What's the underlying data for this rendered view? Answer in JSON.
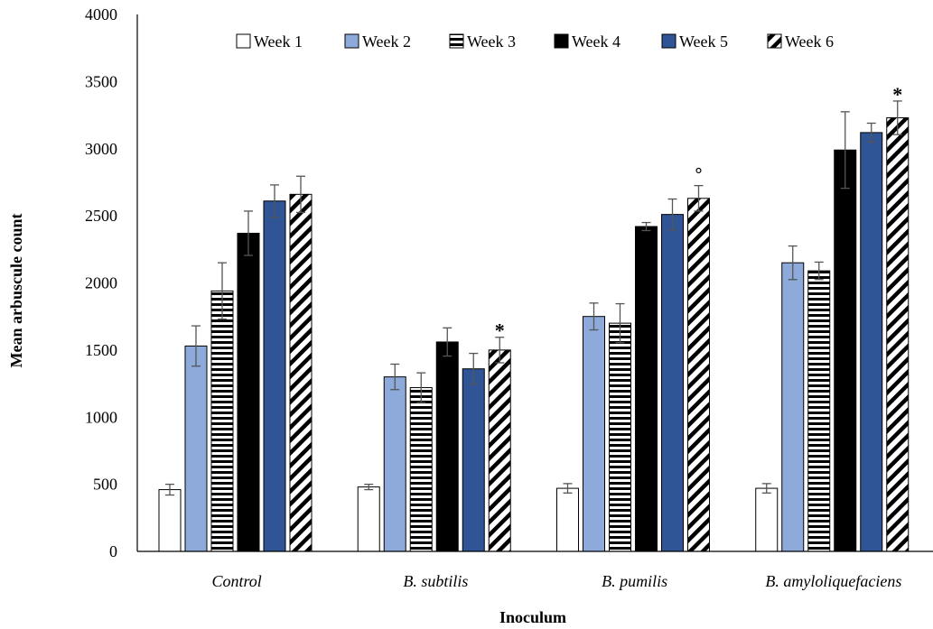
{
  "chart_data": {
    "type": "bar",
    "xlabel": "Inoculum",
    "ylabel": "Mean arbuscule count",
    "ylim": [
      0,
      4000
    ],
    "yticks": [
      0,
      500,
      1000,
      1500,
      2000,
      2500,
      3000,
      3500,
      4000
    ],
    "categories": [
      "Control",
      "B. subtilis",
      "B. pumilis",
      "B. amyloliquefaciens"
    ],
    "legend_position": "top",
    "grid": false,
    "series": [
      {
        "name": "Week 1",
        "pattern": "white",
        "color": "#ffffff",
        "values": [
          460,
          480,
          470,
          470
        ],
        "errors": [
          40,
          20,
          35,
          35
        ]
      },
      {
        "name": "Week 2",
        "pattern": "light-blue",
        "color": "#8eaadb",
        "values": [
          1530,
          1300,
          1750,
          2150
        ],
        "errors": [
          150,
          95,
          100,
          125
        ]
      },
      {
        "name": "Week 3",
        "pattern": "horizontal-stripes",
        "color": "#000000",
        "values": [
          1940,
          1220,
          1700,
          2090
        ],
        "errors": [
          210,
          110,
          145,
          65
        ]
      },
      {
        "name": "Week 4",
        "pattern": "black",
        "color": "#000000",
        "values": [
          2370,
          1560,
          2420,
          2990
        ],
        "errors": [
          165,
          105,
          30,
          285
        ]
      },
      {
        "name": "Week 5",
        "pattern": "dark-blue",
        "color": "#2f5597",
        "values": [
          2610,
          1360,
          2510,
          3120
        ],
        "errors": [
          120,
          115,
          115,
          70
        ]
      },
      {
        "name": "Week 6",
        "pattern": "diagonal-stripes",
        "color": "#000000",
        "values": [
          2660,
          1500,
          2630,
          3230
        ],
        "errors": [
          135,
          95,
          95,
          125
        ]
      }
    ],
    "annotations": [
      {
        "series": "Week 6",
        "category": "B. subtilis",
        "text": "*"
      },
      {
        "series": "Week 6",
        "category": "B. pumilis",
        "text": "°"
      },
      {
        "series": "Week 6",
        "category": "B. amyloliquefaciens",
        "text": "*"
      }
    ]
  }
}
